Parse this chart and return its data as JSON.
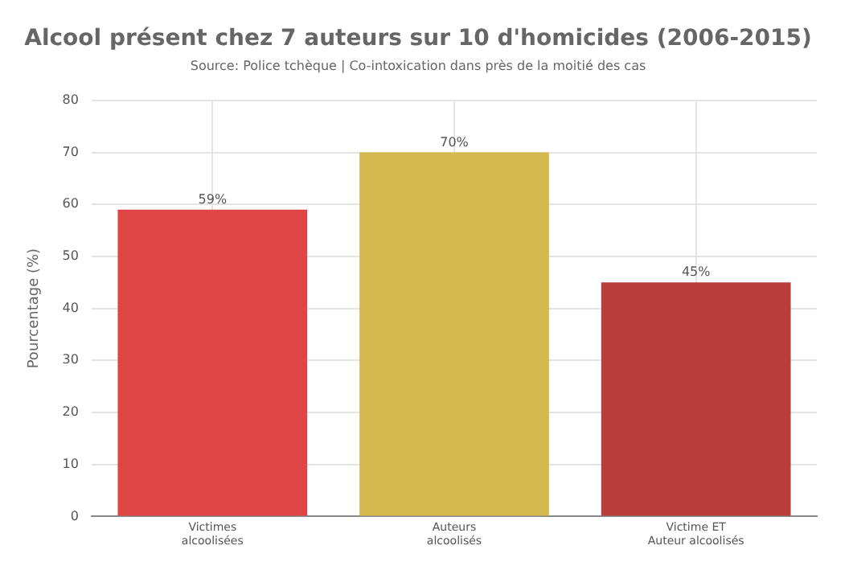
{
  "chart_data": {
    "type": "bar",
    "title": "Alcool présent chez 7 auteurs sur 10 d'homicides (2006-2015)",
    "subtitle": "Source: Police tchèque | Co-intoxication dans près de la moitié des cas",
    "ylabel": "Pourcentage (%)",
    "categories": [
      "Victimes\nalcoolisées",
      "Auteurs\nalcoolisés",
      "Victime ET\nAuteur alcoolisés"
    ],
    "values": [
      59,
      70,
      45
    ],
    "colors": [
      "#e04545",
      "#d4ba4c",
      "#b83e3b"
    ],
    "value_labels": [
      "59%",
      "70%",
      "45%"
    ],
    "ylim": [
      0,
      80
    ],
    "yticks": [
      0,
      10,
      20,
      30,
      40,
      50,
      60,
      70,
      80
    ],
    "grid": true
  }
}
